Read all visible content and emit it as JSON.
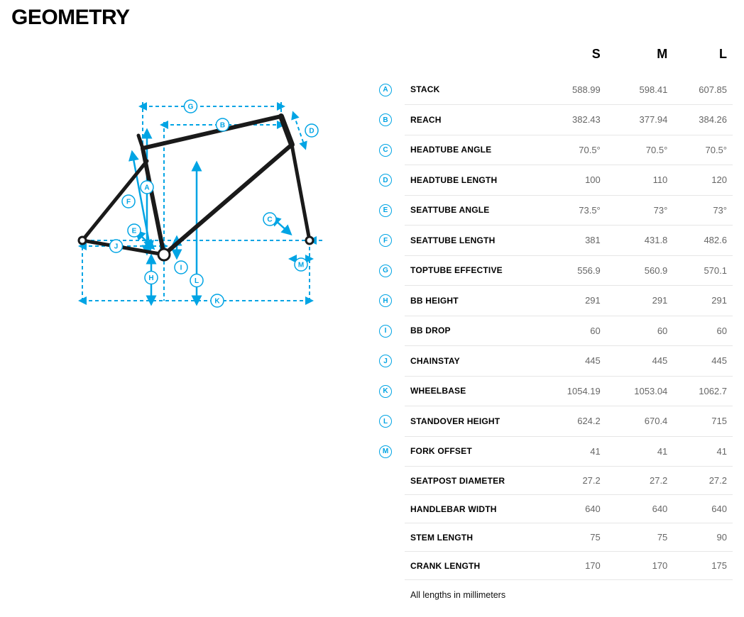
{
  "title": "GEOMETRY",
  "footnote": "All lengths in millimeters",
  "diagram": {
    "accent_color": "#00a4e4",
    "frame_color": "#1a1a1a",
    "stroke_width_frame": 6,
    "stroke_width_dash": 2,
    "dash_pattern": "5,4",
    "labels": [
      "A",
      "B",
      "C",
      "D",
      "E",
      "F",
      "G",
      "H",
      "I",
      "J",
      "K",
      "L",
      "M"
    ]
  },
  "table": {
    "sizes": [
      "S",
      "M",
      "L"
    ],
    "rows": [
      {
        "id": "A",
        "label": "STACK",
        "values": [
          "588.99",
          "598.41",
          "607.85"
        ]
      },
      {
        "id": "B",
        "label": "REACH",
        "values": [
          "382.43",
          "377.94",
          "384.26"
        ]
      },
      {
        "id": "C",
        "label": "HEADTUBE ANGLE",
        "values": [
          "70.5°",
          "70.5°",
          "70.5°"
        ]
      },
      {
        "id": "D",
        "label": "HEADTUBE LENGTH",
        "values": [
          "100",
          "110",
          "120"
        ]
      },
      {
        "id": "E",
        "label": "SEATTUBE ANGLE",
        "values": [
          "73.5°",
          "73°",
          "73°"
        ]
      },
      {
        "id": "F",
        "label": "SEATTUBE LENGTH",
        "values": [
          "381",
          "431.8",
          "482.6"
        ]
      },
      {
        "id": "G",
        "label": "TOPTUBE EFFECTIVE",
        "values": [
          "556.9",
          "560.9",
          "570.1"
        ]
      },
      {
        "id": "H",
        "label": "BB HEIGHT",
        "values": [
          "291",
          "291",
          "291"
        ]
      },
      {
        "id": "I",
        "label": "BB DROP",
        "values": [
          "60",
          "60",
          "60"
        ]
      },
      {
        "id": "J",
        "label": "CHAINSTAY",
        "values": [
          "445",
          "445",
          "445"
        ]
      },
      {
        "id": "K",
        "label": "WHEELBASE",
        "values": [
          "1054.19",
          "1053.04",
          "1062.7"
        ]
      },
      {
        "id": "L",
        "label": "STANDOVER HEIGHT",
        "values": [
          "624.2",
          "670.4",
          "715"
        ]
      },
      {
        "id": "M",
        "label": "FORK OFFSET",
        "values": [
          "41",
          "41",
          "41"
        ]
      },
      {
        "id": "",
        "label": "SEATPOST DIAMETER",
        "values": [
          "27.2",
          "27.2",
          "27.2"
        ]
      },
      {
        "id": "",
        "label": "HANDLEBAR WIDTH",
        "values": [
          "640",
          "640",
          "640"
        ]
      },
      {
        "id": "",
        "label": "STEM LENGTH",
        "values": [
          "75",
          "75",
          "90"
        ]
      },
      {
        "id": "",
        "label": "CRANK LENGTH",
        "values": [
          "170",
          "170",
          "175"
        ]
      }
    ]
  }
}
